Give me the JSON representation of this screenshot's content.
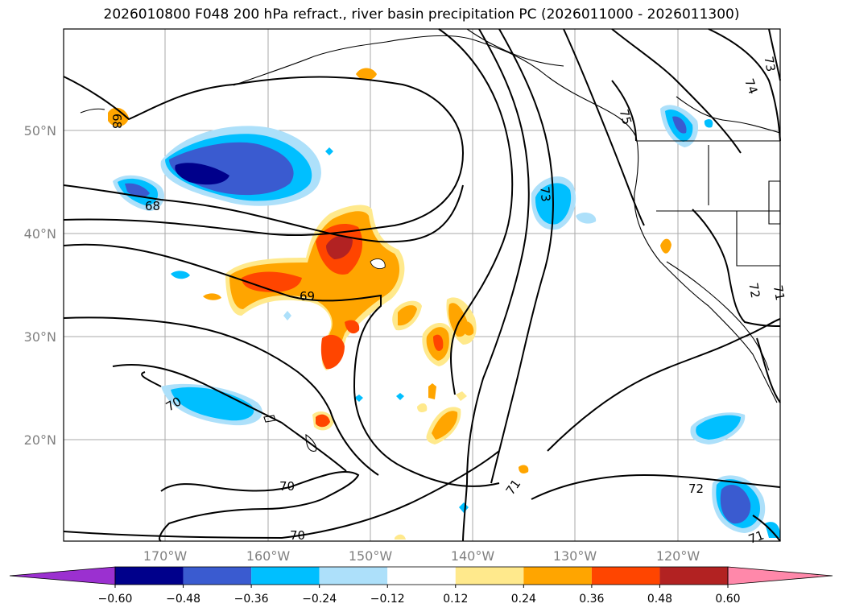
{
  "title": "2026010800 F048 200 hPa refract., river basin precipitation PC (2026011000 - 2026011300)",
  "map": {
    "lat_labels": [
      "50°N",
      "40°N",
      "30°N",
      "20°N"
    ],
    "lon_labels": [
      "170°W",
      "160°W",
      "150°W",
      "140°W",
      "130°W",
      "120°W"
    ],
    "contour_labels": [
      "68",
      "68",
      "69",
      "70",
      "70",
      "70",
      "71",
      "72",
      "73",
      "74",
      "73",
      "72",
      "71",
      "71",
      "75"
    ]
  },
  "colorbar": {
    "ticks": [
      "−0.60",
      "−0.48",
      "−0.36",
      "−0.24",
      "−0.12",
      "0.12",
      "0.24",
      "0.36",
      "0.48",
      "0.60"
    ],
    "colors": [
      "#9b30d0",
      "#00008b",
      "#3a5bd0",
      "#00bfff",
      "#ade0fa",
      "#ffffff",
      "#ffe98c",
      "#ffa500",
      "#ff4500",
      "#b22222",
      "#ff88aa"
    ]
  }
}
